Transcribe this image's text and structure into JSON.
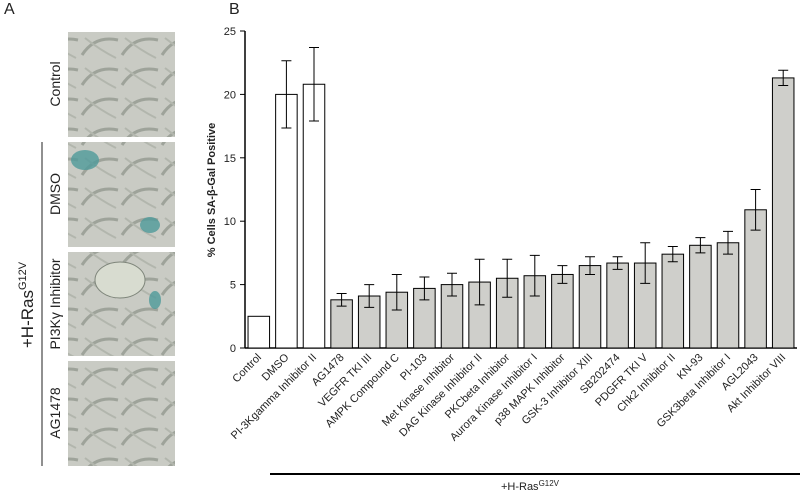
{
  "panel_a": {
    "label": "A",
    "conditions": [
      "Control",
      "DMSO",
      "PI3Kγ Inhibitor",
      "AG1478"
    ],
    "group_label": {
      "text": "+H-Ras",
      "superscript": "G12V"
    }
  },
  "chart_data": {
    "type": "bar",
    "panel_label": "B",
    "y_label": "% Cells SA-β-Gal Positive",
    "categories": [
      "Control",
      "DMSO",
      "PI-3Kgamma Inhibitor II",
      "AG1478",
      "VEGFR TKI III",
      "AMPK Compound C",
      "PI-103",
      "Met Kinase Inhibitor",
      "DAG Kinase Inhibitor II",
      "PKCbeta Inhibitor",
      "Aurora Kinase Inhibitor I",
      "p38 MAPK Inhibitor",
      "GSK-3 Inhibitor XIII",
      "SB202474",
      "PDGFR TKI V",
      "Chk2 Inhibitor II",
      "KN-93",
      "GSK3beta Inhibitor I",
      "AGL2043",
      "Akt Inhibitor VIII"
    ],
    "values": [
      2.5,
      20.0,
      20.8,
      3.8,
      4.1,
      4.4,
      4.7,
      5.0,
      5.2,
      5.5,
      5.7,
      5.8,
      6.5,
      6.7,
      6.7,
      7.4,
      8.1,
      8.3,
      10.9,
      21.3
    ],
    "errors": [
      null,
      2.65,
      2.9,
      0.5,
      0.9,
      1.4,
      0.9,
      0.9,
      1.8,
      1.5,
      1.6,
      0.7,
      0.7,
      0.5,
      1.6,
      0.6,
      0.6,
      0.9,
      1.6,
      0.6
    ],
    "colors": [
      "#ffffff",
      "#ffffff",
      "#ffffff",
      "#cfcfcb",
      "#cfcfcb",
      "#cfcfcb",
      "#cfcfcb",
      "#cfcfcb",
      "#cfcfcb",
      "#cfcfcb",
      "#cfcfcb",
      "#cfcfcb",
      "#cfcfcb",
      "#cfcfcb",
      "#cfcfcb",
      "#cfcfcb",
      "#cfcfcb",
      "#cfcfcb",
      "#cfcfcb",
      "#cfcfcb"
    ],
    "ylim": [
      0,
      25
    ],
    "yticks": [
      0,
      5,
      10,
      15,
      20,
      25
    ],
    "group_label": {
      "text": "+H-Ras",
      "superscript": "G12V"
    }
  }
}
